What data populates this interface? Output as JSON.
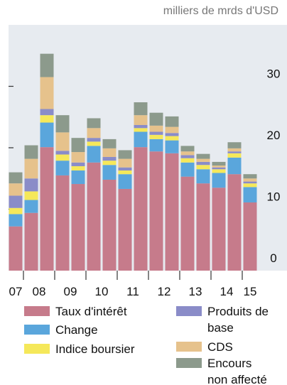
{
  "chart_data": {
    "type": "stacked_bar",
    "unit_label": "milliers de mrds d'USD",
    "categories": [
      "07",
      "08",
      null,
      "09",
      null,
      "10",
      null,
      "11",
      null,
      "12",
      null,
      "13",
      null,
      "14",
      null,
      "15"
    ],
    "series": [
      {
        "name": "Taux d'intérêt",
        "color": "#c67b8b",
        "values": [
          7.2,
          9.4,
          20.1,
          15.5,
          14.1,
          17.6,
          14.8,
          13.3,
          20.1,
          19.4,
          19.1,
          15.3,
          14.2,
          13.5,
          15.7,
          11.1
        ]
      },
      {
        "name": "Change",
        "color": "#5aa6dc",
        "values": [
          2.0,
          2.1,
          4.0,
          2.4,
          2.2,
          2.7,
          2.4,
          2.4,
          2.5,
          2.0,
          2.1,
          2.3,
          2.3,
          2.4,
          2.7,
          2.5
        ]
      },
      {
        "name": "Indice boursier",
        "color": "#f5e85a",
        "values": [
          1.0,
          1.4,
          1.2,
          1.0,
          0.7,
          0.7,
          0.7,
          0.6,
          0.6,
          0.7,
          0.7,
          0.7,
          0.7,
          0.6,
          0.7,
          0.6
        ]
      },
      {
        "name": "Produits de base",
        "color": "#8a8cc8",
        "values": [
          2.0,
          2.1,
          1.0,
          0.6,
          0.6,
          0.6,
          0.6,
          0.5,
          0.5,
          0.5,
          0.5,
          0.5,
          0.5,
          0.3,
          0.3,
          0.3
        ]
      },
      {
        "name": "CDS",
        "color": "#e6c28c",
        "values": [
          2.0,
          3.2,
          5.2,
          3.0,
          1.7,
          1.6,
          1.4,
          1.4,
          1.6,
          1.0,
          1.0,
          0.6,
          0.5,
          0.3,
          0.5,
          0.5
        ]
      },
      {
        "name": "Encours non affecté",
        "color": "#8c9a8c",
        "values": [
          1.8,
          2.2,
          3.8,
          2.8,
          2.3,
          1.6,
          1.5,
          1.4,
          2.1,
          2.1,
          1.7,
          0.9,
          0.8,
          0.6,
          1.0,
          0.7
        ]
      }
    ],
    "ylim": [
      0,
      40
    ],
    "yticks": [
      0,
      10,
      20,
      30
    ],
    "grid": false
  }
}
